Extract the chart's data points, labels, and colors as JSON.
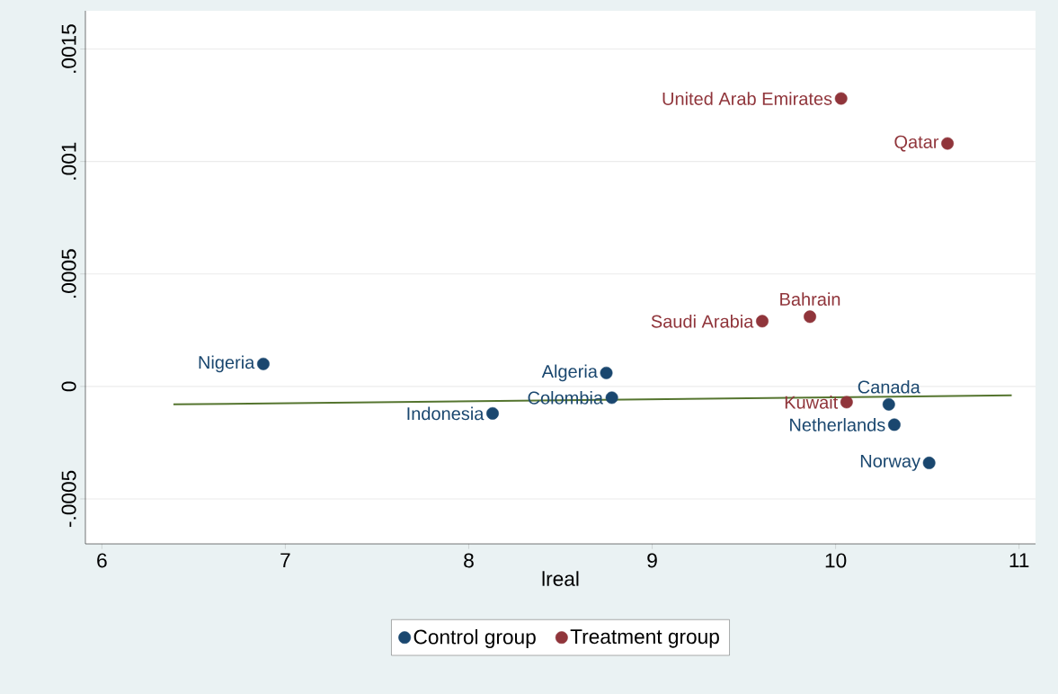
{
  "chart_data": {
    "type": "scatter",
    "xlabel": "lreal",
    "xlim": [
      5.91,
      11.09
    ],
    "ylim": [
      -0.0007,
      0.00167
    ],
    "xticks": [
      6,
      7,
      8,
      9,
      10,
      11
    ],
    "yticks": [
      {
        "value": -0.0005,
        "label": "-.0005"
      },
      0,
      {
        "value": 0.0005,
        "label": ".0005"
      },
      {
        "value": 0.001,
        "label": ".001"
      },
      {
        "value": 0.0015,
        "label": ".0015"
      }
    ],
    "grid": "y",
    "legend": "bottom",
    "series": [
      {
        "name": "Control group",
        "color": "#1a476f",
        "x": [
          6.88,
          8.13,
          8.75,
          8.78,
          10.29,
          10.32,
          10.51
        ],
        "values": [
          0.0001,
          -0.00012,
          6e-05,
          -5e-05,
          -8e-05,
          -0.00017,
          -0.00034
        ]
      },
      {
        "name": "Treatment group",
        "color": "#90353b",
        "x": [
          10.03,
          10.61,
          9.6,
          9.86,
          10.06
        ],
        "values": [
          0.00128,
          0.00108,
          0.00029,
          0.00031,
          -7e-05
        ]
      },
      {
        "type": "line",
        "color": "#55752f",
        "x": [
          6.39,
          10.96
        ],
        "values": [
          -8e-05,
          -4e-05
        ]
      }
    ],
    "annotations": [
      {
        "text": "Nigeria",
        "x": 6.88,
        "y": 0.0001
      },
      {
        "text": "Indonesia",
        "x": 8.13,
        "y": -0.00012
      },
      {
        "text": "Algeria",
        "x": 8.75,
        "y": 6e-05
      },
      {
        "text": "Colombia",
        "x": 8.78,
        "y": -5e-05
      },
      {
        "text": "Canada",
        "x": 10.29,
        "y": -8e-05
      },
      {
        "text": "Netherlands",
        "x": 10.32,
        "y": -0.00017
      },
      {
        "text": "Norway",
        "x": 10.51,
        "y": -0.00034
      },
      {
        "text": "United Arab Emirates",
        "x": 10.03,
        "y": 0.00128
      },
      {
        "text": "Qatar",
        "x": 10.61,
        "y": 0.00108
      },
      {
        "text": "Saudi Arabia",
        "x": 9.6,
        "y": 0.00029
      },
      {
        "text": "Bahrain",
        "x": 9.86,
        "y": 0.00031
      },
      {
        "text": "Kuwait",
        "x": 10.06,
        "y": -7e-05
      }
    ]
  }
}
